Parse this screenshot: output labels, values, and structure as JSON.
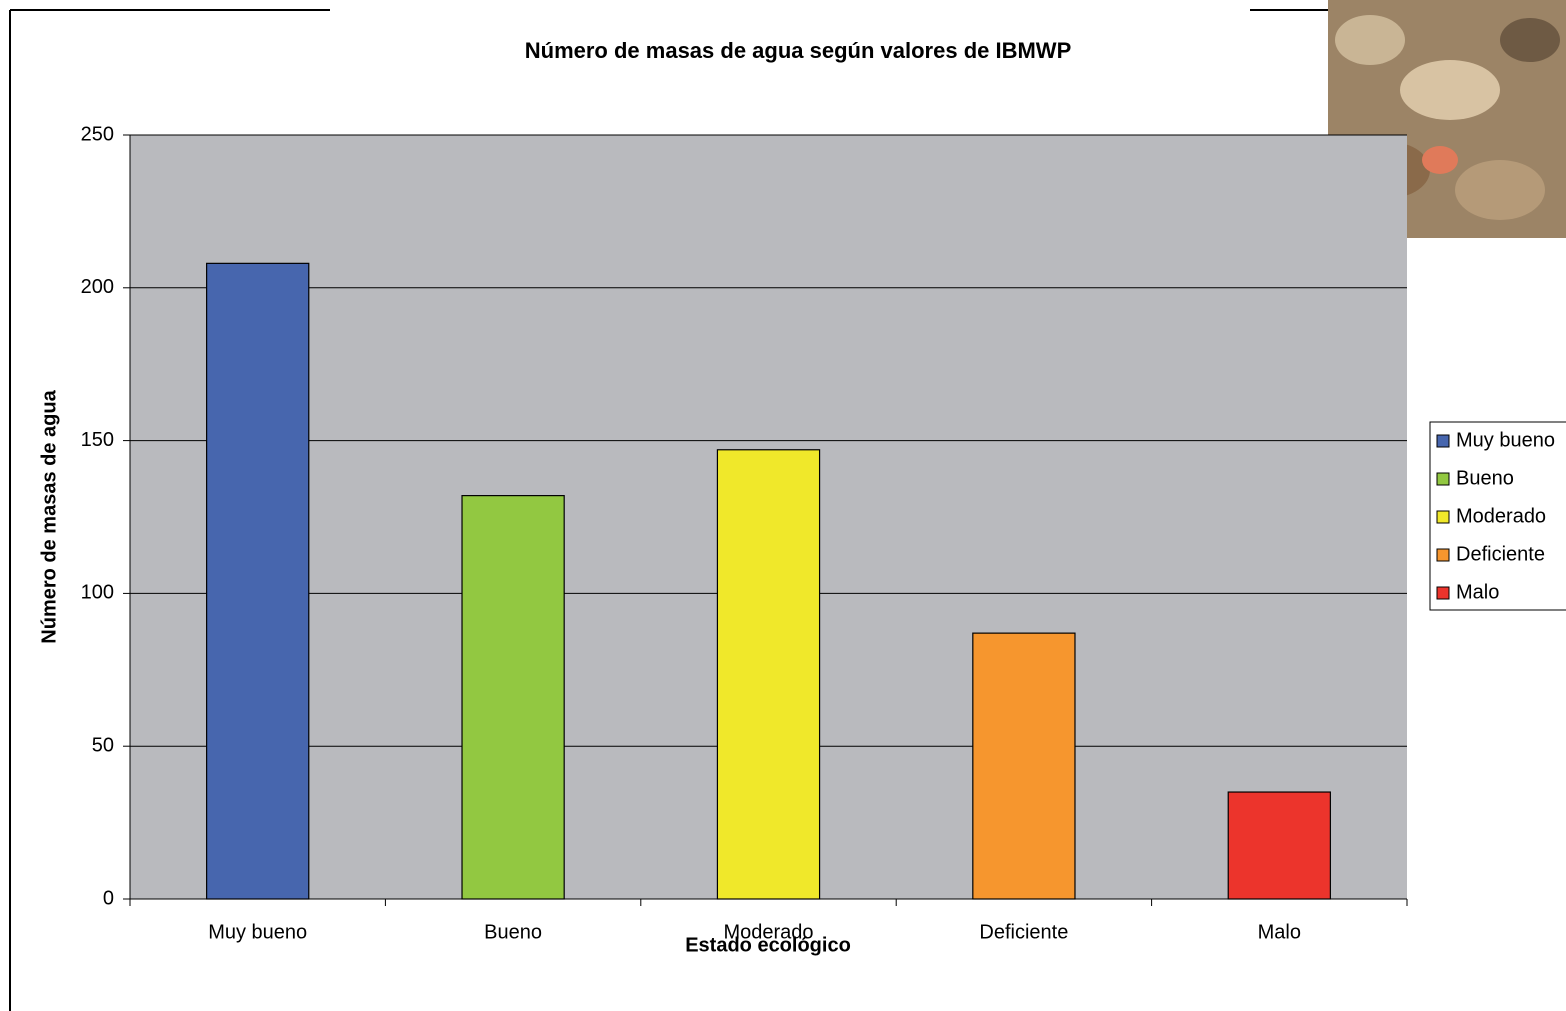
{
  "chart_data": {
    "type": "bar",
    "title": "Número de masas de agua según valores de IBMWP",
    "x_label": "Estado ecológico",
    "y_label": "Número de masas de agua",
    "categories": [
      "Muy bueno",
      "Bueno",
      "Moderado",
      "Deficiente",
      "Malo"
    ],
    "values": [
      208,
      132,
      147,
      87,
      35
    ],
    "colors": [
      "#4766ae",
      "#92c841",
      "#f0e82a",
      "#f6962e",
      "#ec342c"
    ],
    "ylim": [
      0,
      250
    ],
    "yticks": [
      0,
      50,
      100,
      150,
      200,
      250
    ],
    "grid": true,
    "legend": "right"
  }
}
